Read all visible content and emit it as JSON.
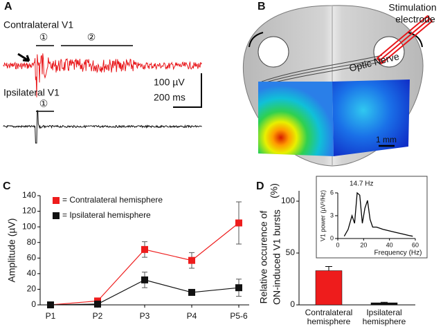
{
  "panel_a": {
    "label": "A",
    "contra_title": "Contralateral V1",
    "ipsi_title": "Ipsilateral V1",
    "marker_1": "①",
    "marker_2": "②",
    "ipsi_marker_1": "①",
    "scale_v": "100 µV",
    "scale_t": "200 ms"
  },
  "panel_b": {
    "label": "B",
    "optic_nerve": "Optic Nerve",
    "electrode": [
      "Stimulation",
      "electrode"
    ],
    "scale": "1 mm"
  },
  "chart_data": [
    {
      "type": "line",
      "panel_label": "C",
      "ylabel": "Amplitude (µV)",
      "categories": [
        "P1",
        "P2",
        "P3",
        "P4",
        "P5-6"
      ],
      "marker": "square",
      "series": [
        {
          "name": "= Contralateral hemisphere",
          "color": "#ee1c1c",
          "values": [
            0,
            5,
            71,
            57,
            105
          ],
          "errors": [
            1,
            3,
            10,
            10,
            27
          ]
        },
        {
          "name": "= Ipsilateral hemisphere",
          "color": "#111111",
          "values": [
            0,
            1,
            32,
            16,
            22
          ],
          "errors": [
            0.5,
            1,
            10,
            2,
            11
          ]
        }
      ],
      "ylim": [
        0,
        140
      ],
      "yticks": [
        0,
        20,
        40,
        60,
        80,
        100,
        120,
        140
      ],
      "legend": "upper left"
    },
    {
      "type": "bar",
      "panel_label": "D",
      "ylabel": [
        "Relative occurence of",
        "ON-induced V1 bursts"
      ],
      "ylabel_unit": "(%)",
      "categories": [
        [
          "Contralateral",
          "hemisphere"
        ],
        [
          "Ipsilateral",
          "hemisphere"
        ]
      ],
      "values": [
        33,
        2
      ],
      "errors": [
        4,
        0.5
      ],
      "colors": [
        "#ee1c1c",
        "#111111"
      ],
      "ylim": [
        0,
        110
      ],
      "yticks": [
        0,
        50,
        100
      ]
    },
    {
      "type": "line",
      "annotation": "14.7 Hz",
      "xlabel": "Frequency (Hz)",
      "ylabel": "V1 power (µV²/Hz)",
      "x": [
        5,
        8,
        11,
        13,
        15,
        17,
        19,
        21,
        23,
        25,
        27,
        30,
        35,
        40,
        45,
        50,
        55,
        58
      ],
      "series": [
        {
          "color": "#000000",
          "values": [
            0.3,
            1.2,
            3,
            2,
            6,
            5.7,
            2,
            4,
            5,
            2.5,
            1.5,
            1.5,
            1.2,
            1.0,
            0.8,
            0.6,
            0.4,
            0.3
          ]
        }
      ],
      "xlim": [
        0,
        60
      ],
      "xticks": [
        0,
        20,
        40,
        60
      ],
      "ylim": [
        0,
        6
      ],
      "yticks": [
        0,
        3,
        6
      ]
    }
  ]
}
